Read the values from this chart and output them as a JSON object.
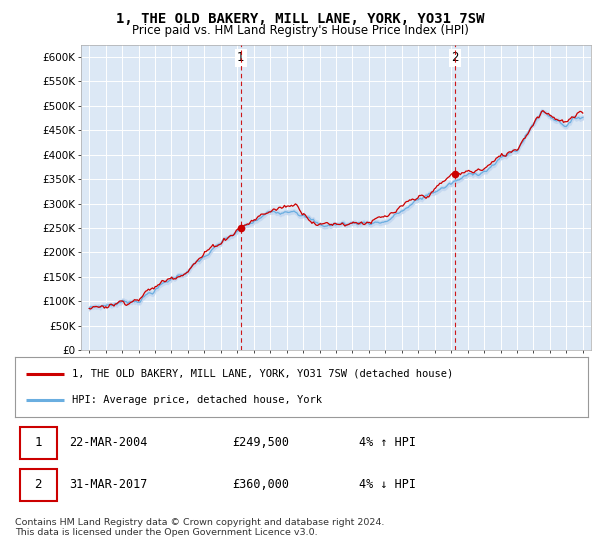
{
  "title": "1, THE OLD BAKERY, MILL LANE, YORK, YO31 7SW",
  "subtitle": "Price paid vs. HM Land Registry's House Price Index (HPI)",
  "ylabel_ticks": [
    "£0",
    "£50K",
    "£100K",
    "£150K",
    "£200K",
    "£250K",
    "£300K",
    "£350K",
    "£400K",
    "£450K",
    "£500K",
    "£550K",
    "£600K"
  ],
  "ytick_values": [
    0,
    50000,
    100000,
    150000,
    200000,
    250000,
    300000,
    350000,
    400000,
    450000,
    500000,
    550000,
    600000
  ],
  "x_start_year": 1995,
  "x_end_year": 2025,
  "sale1_date": 2004.22,
  "sale1_price": 249500,
  "sale2_date": 2017.24,
  "sale2_price": 360000,
  "legend_line1": "1, THE OLD BAKERY, MILL LANE, YORK, YO31 7SW (detached house)",
  "legend_line2": "HPI: Average price, detached house, York",
  "table_row1": [
    "1",
    "22-MAR-2004",
    "£249,500",
    "4% ↑ HPI"
  ],
  "table_row2": [
    "2",
    "31-MAR-2017",
    "£360,000",
    "4% ↓ HPI"
  ],
  "footer": "Contains HM Land Registry data © Crown copyright and database right 2024.\nThis data is licensed under the Open Government Licence v3.0.",
  "hpi_fill_color": "#c5d8f0",
  "price_color": "#cc0000",
  "hpi_line_color": "#6aaee0",
  "bg_color": "#dce8f5",
  "grid_color": "#ffffff"
}
